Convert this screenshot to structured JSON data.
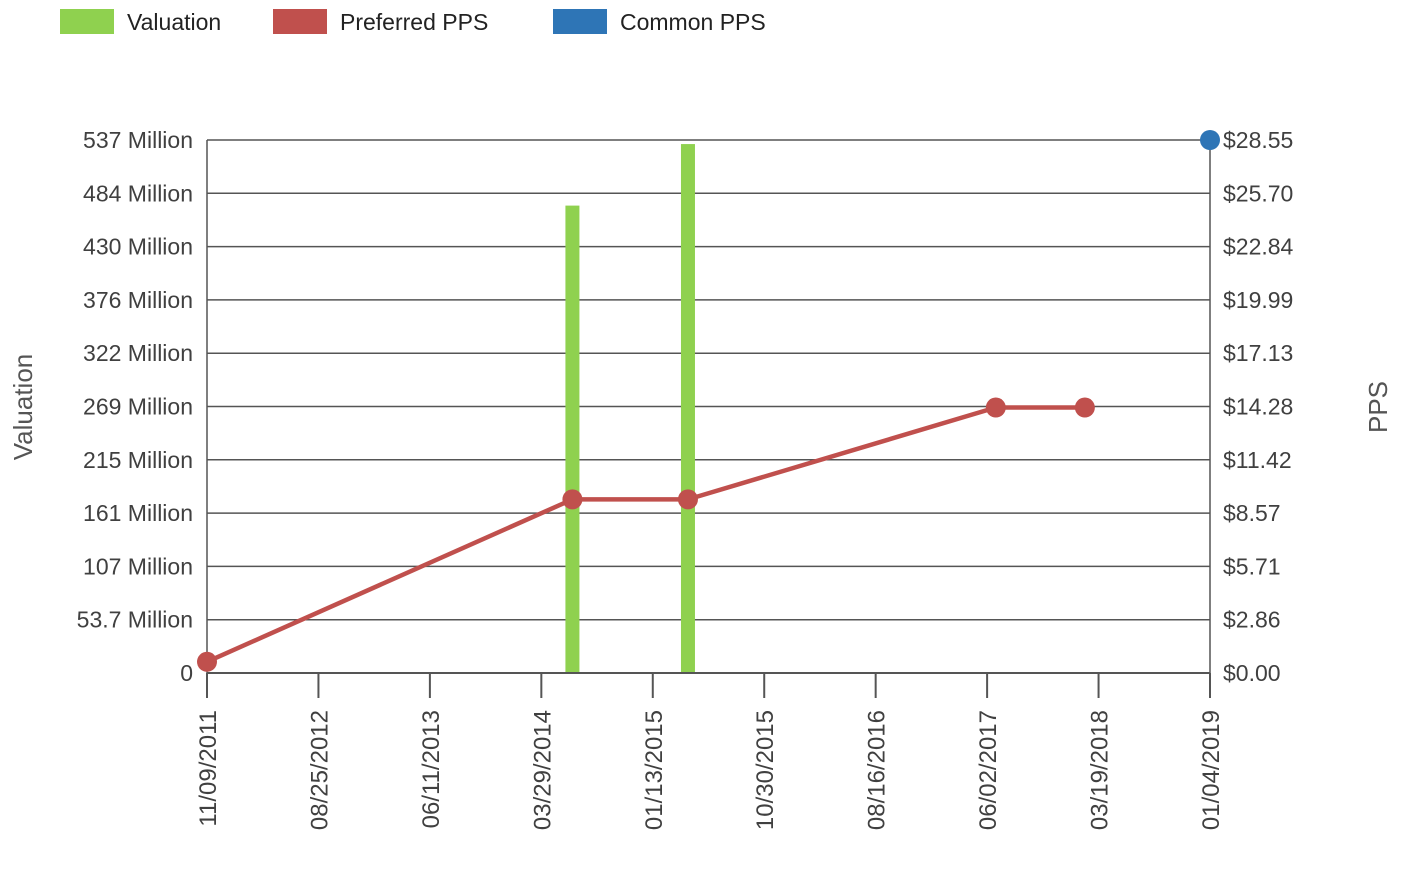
{
  "chart_data": {
    "type": "bar+line",
    "legend": {
      "placement": "top-left",
      "items": [
        {
          "label": "Valuation",
          "color": "#8fd14f"
        },
        {
          "label": "Preferred PPS",
          "color": "#c0504d"
        },
        {
          "label": "Common PPS",
          "color": "#2e75b6"
        }
      ]
    },
    "y_left": {
      "label": "Valuation",
      "ticks": [
        "0",
        "53.7 Million",
        "107 Million",
        "161 Million",
        "215 Million",
        "269 Million",
        "322 Million",
        "376 Million",
        "430 Million",
        "484 Million",
        "537 Million"
      ],
      "range_millions": [
        0,
        537.1
      ]
    },
    "y_right": {
      "label": "PPS",
      "ticks": [
        "$0.00",
        "$2.86",
        "$5.71",
        "$8.57",
        "$11.42",
        "$14.28",
        "$17.13",
        "$19.99",
        "$22.84",
        "$25.70",
        "$28.55"
      ],
      "range": [
        0,
        28.55
      ]
    },
    "x": {
      "ticks": [
        "11/09/2011",
        "08/25/2012",
        "06/11/2013",
        "03/29/2014",
        "01/13/2015",
        "10/30/2015",
        "08/16/2016",
        "06/02/2017",
        "03/19/2018",
        "01/04/2019"
      ],
      "range": [
        "2011-11-09",
        "2019-01-04"
      ]
    },
    "grid": true,
    "series": [
      {
        "name": "Valuation",
        "type": "bar",
        "color": "#8fd14f",
        "unit": "Million",
        "points": [
          {
            "date": "2014-06-18",
            "value": 471
          },
          {
            "date": "2015-04-15",
            "value": 533
          }
        ]
      },
      {
        "name": "Preferred PPS",
        "type": "line",
        "color": "#c0504d",
        "points": [
          {
            "date": "2011-11-09",
            "value": 0.6
          },
          {
            "date": "2014-06-18",
            "value": 9.3
          },
          {
            "date": "2015-04-15",
            "value": 9.3
          },
          {
            "date": "2017-06-25",
            "value": 14.22
          },
          {
            "date": "2018-02-12",
            "value": 14.22
          }
        ]
      },
      {
        "name": "Common PPS",
        "type": "scatter",
        "color": "#2e75b6",
        "points": [
          {
            "date": "2019-01-04",
            "value": 28.55
          }
        ]
      }
    ]
  }
}
